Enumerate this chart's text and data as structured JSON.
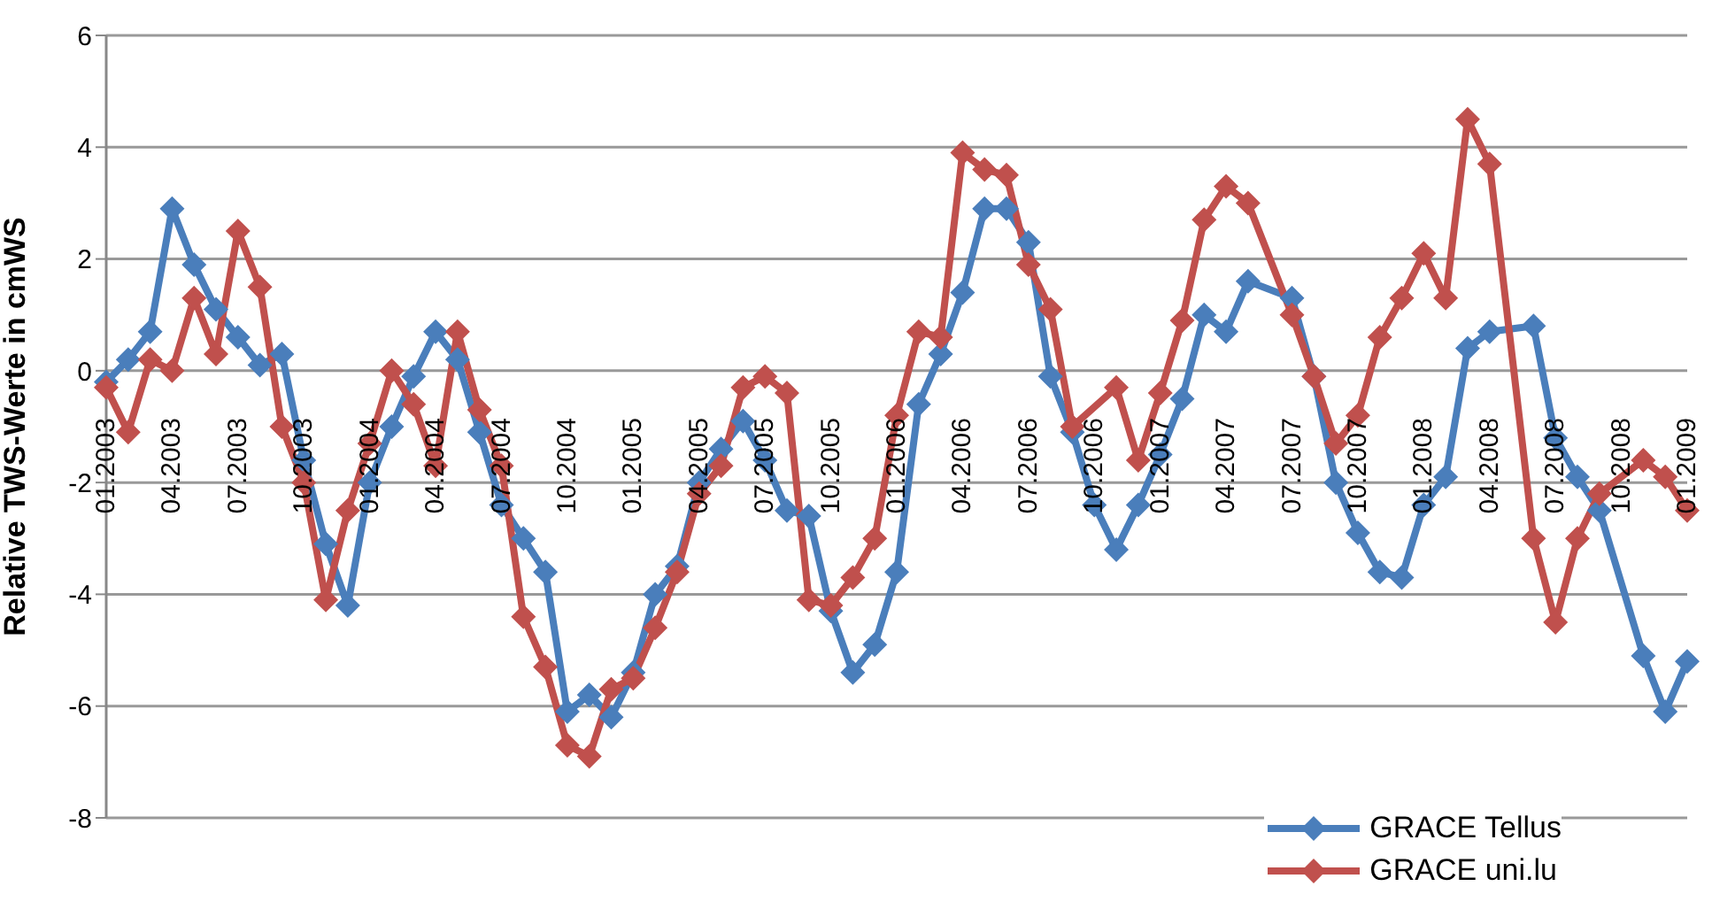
{
  "chart_data": {
    "type": "line",
    "ylabel": "Relative TWS-Werte in cmWS",
    "categories": [
      "01.2003",
      null,
      null,
      "04.2003",
      null,
      null,
      "07.2003",
      null,
      null,
      "10.2003",
      null,
      null,
      "01.2004",
      null,
      null,
      "04.2004",
      null,
      null,
      "07.2004",
      null,
      null,
      "10.2004",
      null,
      null,
      "01.2005",
      null,
      null,
      "04.2005",
      null,
      null,
      "07.2005",
      null,
      null,
      "10.2005",
      null,
      null,
      "01.2006",
      null,
      null,
      "04.2006",
      null,
      null,
      "07.2006",
      null,
      null,
      "10.2006",
      null,
      null,
      "01.2007",
      null,
      null,
      "04.2007",
      null,
      null,
      "07.2007",
      null,
      null,
      "10.2007",
      null,
      null,
      "01.2008",
      null,
      null,
      "04.2008",
      null,
      null,
      "07.2008",
      null,
      null,
      "10.2008",
      null,
      null,
      "01.2009"
    ],
    "series": [
      {
        "name": "GRACE Tellus",
        "color": "#4a7ebb",
        "values": [
          -0.2,
          0.2,
          0.7,
          2.9,
          1.9,
          1.1,
          0.6,
          0.1,
          0.3,
          -1.6,
          -3.1,
          -4.2,
          -2.0,
          -1.0,
          -0.1,
          0.7,
          0.2,
          -1.1,
          -2.4,
          -3.0,
          -3.6,
          -6.1,
          -5.8,
          -6.2,
          -5.4,
          -4.0,
          -3.5,
          -2.0,
          -1.4,
          -0.9,
          -1.6,
          -2.5,
          -2.6,
          -4.3,
          -5.4,
          -4.9,
          -3.6,
          -0.6,
          0.3,
          1.4,
          2.9,
          2.9,
          2.3,
          -0.1,
          -1.1,
          -2.4,
          -3.2,
          -2.4,
          -1.5,
          -0.5,
          1.0,
          0.7,
          1.6,
          null,
          1.3,
          -0.1,
          -2.0,
          -2.9,
          -3.6,
          -3.7,
          -2.4,
          -1.9,
          0.4,
          0.7,
          null,
          0.8,
          -1.2,
          -1.9,
          -2.5,
          null,
          -5.1,
          -6.1,
          -5.2
        ]
      },
      {
        "name": "GRACE uni.lu",
        "color": "#c0504d",
        "values": [
          -0.3,
          -1.1,
          0.2,
          0.0,
          1.3,
          0.3,
          2.5,
          1.5,
          -1.0,
          -2.0,
          -4.1,
          -2.5,
          -1.3,
          0.0,
          -0.6,
          -1.7,
          0.7,
          -0.7,
          -1.7,
          -4.4,
          -5.3,
          -6.7,
          -6.9,
          -5.7,
          -5.5,
          -4.6,
          -3.6,
          -2.2,
          -1.7,
          -0.3,
          -0.1,
          -0.4,
          -4.1,
          -4.2,
          -3.7,
          -3.0,
          -0.8,
          0.7,
          0.6,
          3.9,
          3.6,
          3.5,
          1.9,
          1.1,
          -1.0,
          null,
          -0.3,
          -1.6,
          -0.4,
          0.9,
          2.7,
          3.3,
          3.0,
          null,
          1.0,
          -0.1,
          -1.3,
          -0.8,
          0.6,
          1.3,
          2.1,
          1.3,
          4.5,
          3.7,
          null,
          -3.0,
          -4.5,
          -3.0,
          -2.2,
          null,
          -1.6,
          -1.9,
          -2.5
        ]
      }
    ],
    "ylim": [
      -8,
      6
    ],
    "yticks": [
      -8,
      -6,
      -4,
      -2,
      0,
      2,
      4,
      6
    ],
    "grid": "y",
    "legend": "bottom right",
    "marker": "diamond",
    "line_style": "solid"
  }
}
